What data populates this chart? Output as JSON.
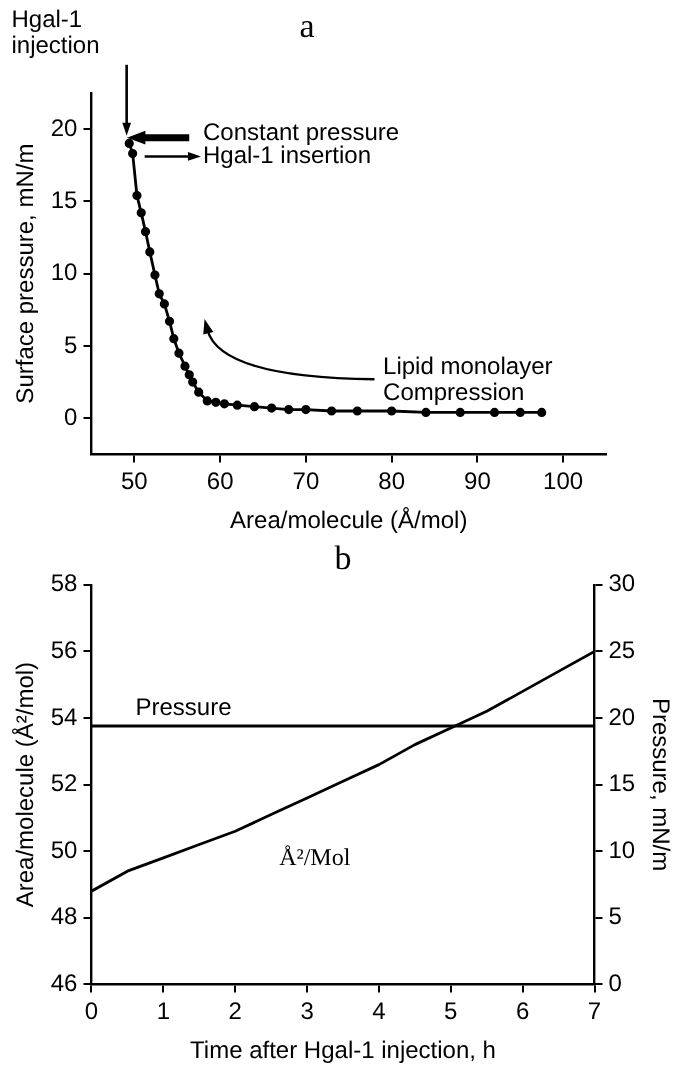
{
  "chart_data": [
    {
      "type": "line",
      "title": "a",
      "xlabel": "Area/molecule (Å/mol)",
      "ylabel": "Surface pressure, mN/m",
      "x": [
        49.4,
        49.8,
        50.3,
        50.8,
        51.3,
        51.8,
        52.4,
        52.9,
        53.5,
        54.1,
        54.6,
        55.2,
        55.9,
        56.4,
        56.8,
        57.5,
        58.5,
        59.5,
        60.5,
        62,
        64,
        66,
        68,
        70,
        73,
        76,
        80,
        84,
        88,
        92,
        95,
        97.5
      ],
      "values": [
        19.0,
        18.3,
        15.4,
        14.2,
        12.9,
        11.5,
        9.9,
        8.6,
        7.9,
        6.7,
        5.5,
        4.5,
        3.6,
        3.0,
        2.5,
        1.8,
        1.2,
        1.1,
        1.0,
        0.9,
        0.8,
        0.7,
        0.6,
        0.6,
        0.5,
        0.5,
        0.5,
        0.4,
        0.4,
        0.4,
        0.4,
        0.4
      ],
      "color": "#000000",
      "marker": "circle",
      "line_style": "solid",
      "xlim": [
        45,
        105
      ],
      "xticks": [
        50,
        60,
        70,
        80,
        90,
        100
      ],
      "ylim": [
        -2.5,
        22.5
      ],
      "yticks": [
        0,
        5,
        10,
        15,
        20
      ],
      "grid": false,
      "legend": false,
      "annotations": [
        "Hgal-1\ninjection",
        "Constant pressure",
        "Hgal-1 insertion",
        "Lipid monolayer\nCompression"
      ]
    },
    {
      "type": "line",
      "title": "b",
      "xlabel": "Time after Hgal-1 injection, h",
      "ylabel": "Area/molecule (Å²/mol)",
      "y2label": "Pressure, mN/m",
      "x": [
        0,
        0.5,
        1,
        1.5,
        2,
        2.5,
        3,
        3.5,
        4,
        4.5,
        5,
        5.5,
        6,
        6.5,
        7
      ],
      "series": [
        {
          "name": "Å²/Mol",
          "color": "#000000",
          "values": [
            48.8,
            49.4,
            49.8,
            50.2,
            50.6,
            51.1,
            51.6,
            52.1,
            52.6,
            53.2,
            53.7,
            54.2,
            54.8,
            55.4,
            56.0
          ]
        },
        {
          "name": "Pressure",
          "color": "#000000",
          "axis": "y2",
          "x": [
            0,
            7
          ],
          "values": [
            19.4,
            19.4
          ]
        }
      ],
      "marker": "none",
      "line_style": "solid",
      "xlim": [
        0,
        7
      ],
      "xticks": [
        0,
        1,
        2,
        3,
        4,
        5,
        6,
        7
      ],
      "ylim": [
        46,
        58
      ],
      "yticks": [
        46,
        48,
        50,
        52,
        54,
        56,
        58
      ],
      "y2lim": [
        0,
        30
      ],
      "y2ticks": [
        0,
        5,
        10,
        15,
        20,
        25,
        30
      ],
      "grid": false
    }
  ]
}
